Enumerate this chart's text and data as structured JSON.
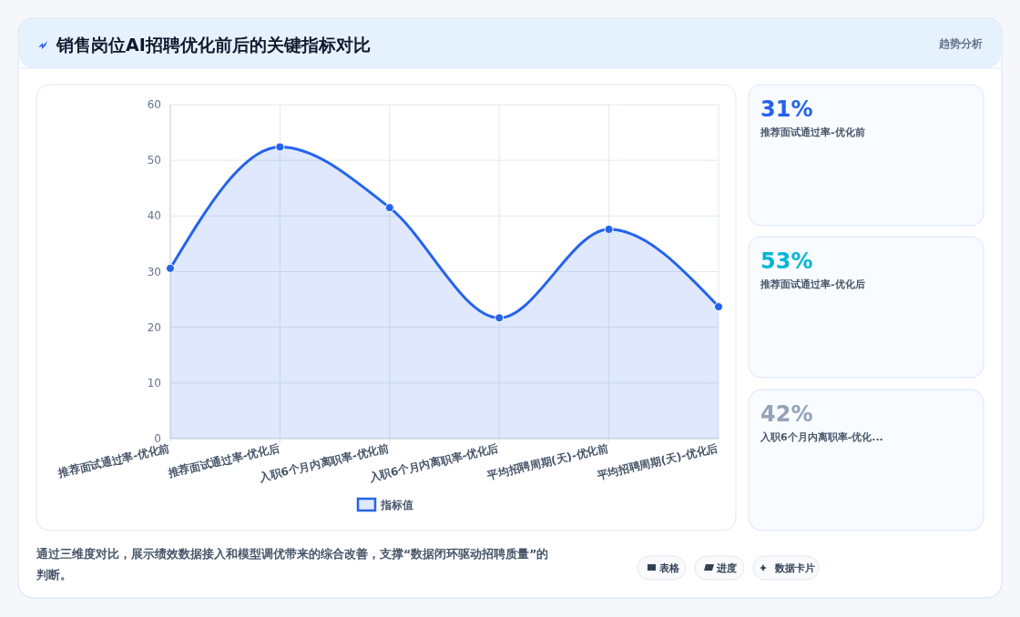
{
  "chart_data": [
    {
      "type": "area",
      "title": "销售岗位AI招聘优化前后的关键指标对比",
      "categories": [
        "推荐面试通过率-优化前",
        "推荐面试通过率-优化后",
        "入职6个月内离职率-优化前",
        "入职6个月内离职率-优化后",
        "平均招聘周期(天)-优化前",
        "平均招聘周期(天)-优化后"
      ],
      "series": [
        {
          "name": "指标值",
          "color": "#2563eb",
          "values": [
            30.6,
            52.4,
            41.5,
            21.7,
            37.6,
            23.7
          ]
        }
      ],
      "ylim": [
        0,
        60
      ],
      "yticks": [
        0,
        10,
        20,
        30,
        40,
        50,
        60
      ],
      "grid": true,
      "legend": "bottom",
      "marker": "circle",
      "line_style": "solid",
      "annotations": [
        "趋势分析",
        "通过三维度对比，展示绩效数据接入和模型调优带来的综合改善，支撑“数据闭环驱动招聘质量”的判断。"
      ]
    },
    {
      "type": "other",
      "annotations": [
        "31%",
        "推荐面试通过率-优化前",
        "53%",
        "推荐面试通过率-优化后",
        "42%",
        "入职6个月内离职率-优化...",
        "表格",
        "进度",
        "数据卡片"
      ]
    }
  ]
}
